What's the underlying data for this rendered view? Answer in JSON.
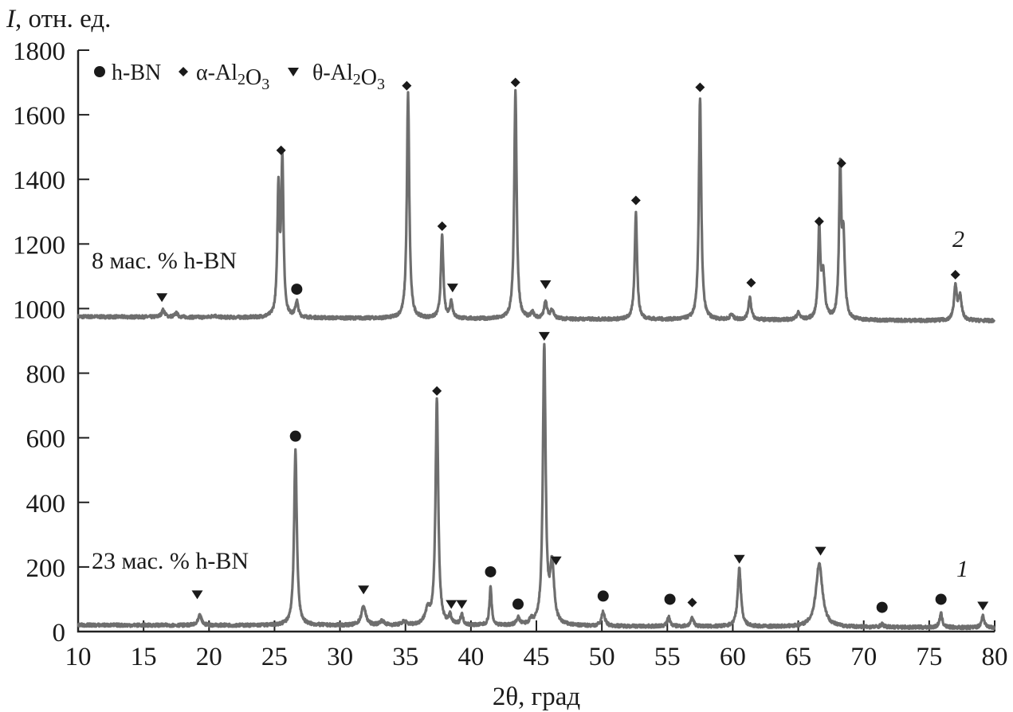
{
  "chart_data": {
    "type": "line",
    "title": "",
    "xlabel": "2θ, град",
    "ylabel_italic": "I",
    "ylabel_rest": ", отн. ед.",
    "xlim": [
      10,
      80
    ],
    "ylim": [
      0,
      1800
    ],
    "xticks": [
      10,
      15,
      20,
      25,
      30,
      35,
      40,
      45,
      50,
      55,
      60,
      65,
      70,
      75,
      80
    ],
    "yticks": [
      0,
      200,
      400,
      600,
      800,
      1000,
      1200,
      1400,
      1600,
      1800
    ],
    "grid": false,
    "line_color": "#6e6e6e",
    "legend": {
      "placement": "top-left",
      "entries": [
        {
          "marker": "circle",
          "label": "h-BN"
        },
        {
          "marker": "diamond",
          "label": "α-Al2O3"
        },
        {
          "marker": "triangle-down",
          "label": "θ-Al2O3"
        }
      ]
    },
    "series": [
      {
        "curve_number": "2",
        "name": "8 мас. % h-BN",
        "baseline": [
          [
            10,
            975
          ],
          [
            40,
            968
          ],
          [
            80,
            962
          ]
        ],
        "peaks": [
          [
            16.5,
            995,
            0.3
          ],
          [
            17.5,
            985,
            0.3
          ],
          [
            20.4,
            978,
            0.4
          ],
          [
            25.3,
            1360,
            0.2
          ],
          [
            25.6,
            1450,
            0.2
          ],
          [
            26.7,
            1020,
            0.25
          ],
          [
            35.2,
            1665,
            0.22
          ],
          [
            37.8,
            1225,
            0.22
          ],
          [
            38.5,
            1020,
            0.25
          ],
          [
            43.4,
            1675,
            0.22
          ],
          [
            44.7,
            985,
            0.3
          ],
          [
            45.7,
            1022,
            0.25
          ],
          [
            46.2,
            995,
            0.3
          ],
          [
            52.6,
            1295,
            0.22
          ],
          [
            57.5,
            1650,
            0.22
          ],
          [
            59.9,
            980,
            0.3
          ],
          [
            61.3,
            1035,
            0.25
          ],
          [
            65.0,
            985,
            0.3
          ],
          [
            66.6,
            1240,
            0.2
          ],
          [
            66.9,
            1100,
            0.3
          ],
          [
            68.2,
            1415,
            0.2
          ],
          [
            68.45,
            1200,
            0.25
          ],
          [
            77.0,
            1065,
            0.25
          ],
          [
            77.35,
            1035,
            0.3
          ]
        ],
        "markers": [
          [
            "triangle-down",
            16.4,
            1035
          ],
          [
            "diamond",
            25.5,
            1490
          ],
          [
            "circle",
            26.7,
            1060
          ],
          [
            "diamond",
            35.1,
            1690
          ],
          [
            "diamond",
            37.8,
            1255
          ],
          [
            "triangle-down",
            38.6,
            1065
          ],
          [
            "diamond",
            43.4,
            1700
          ],
          [
            "triangle-down",
            45.7,
            1075
          ],
          [
            "diamond",
            52.6,
            1335
          ],
          [
            "diamond",
            57.5,
            1685
          ],
          [
            "diamond",
            61.4,
            1080
          ],
          [
            "diamond",
            66.6,
            1270
          ],
          [
            "diamond",
            68.3,
            1450
          ],
          [
            "diamond",
            77.0,
            1105
          ]
        ]
      },
      {
        "curve_number": "1",
        "name": "23 мас. % h-BN",
        "baseline": [
          [
            10,
            20
          ],
          [
            40,
            18
          ],
          [
            80,
            12
          ]
        ],
        "peaks": [
          [
            19.3,
            50,
            0.3
          ],
          [
            26.6,
            560,
            0.25
          ],
          [
            31.8,
            78,
            0.4
          ],
          [
            33.2,
            32,
            0.4
          ],
          [
            34.9,
            30,
            0.4
          ],
          [
            36.7,
            60,
            0.5
          ],
          [
            37.4,
            715,
            0.25
          ],
          [
            38.4,
            45,
            0.25
          ],
          [
            39.3,
            50,
            0.25
          ],
          [
            41.5,
            135,
            0.2
          ],
          [
            43.6,
            40,
            0.3
          ],
          [
            44.6,
            30,
            0.3
          ],
          [
            45.6,
            878,
            0.25
          ],
          [
            46.2,
            200,
            0.35
          ],
          [
            50.1,
            60,
            0.3
          ],
          [
            55.1,
            45,
            0.25
          ],
          [
            56.9,
            40,
            0.3
          ],
          [
            60.5,
            195,
            0.3
          ],
          [
            66.6,
            210,
            0.6
          ],
          [
            71.4,
            22,
            0.3
          ],
          [
            75.9,
            55,
            0.25
          ],
          [
            79.1,
            50,
            0.25
          ]
        ],
        "markers": [
          [
            "triangle-down",
            19.1,
            115
          ],
          [
            "circle",
            26.6,
            605
          ],
          [
            "triangle-down",
            31.8,
            130
          ],
          [
            "diamond",
            37.4,
            745
          ],
          [
            "triangle-down",
            38.5,
            85
          ],
          [
            "triangle-down",
            39.3,
            85
          ],
          [
            "circle",
            41.5,
            185
          ],
          [
            "circle",
            43.6,
            85
          ],
          [
            "triangle-down",
            45.6,
            915
          ],
          [
            "triangle-down",
            46.5,
            220
          ],
          [
            "circle",
            50.1,
            110
          ],
          [
            "circle",
            55.2,
            100
          ],
          [
            "diamond",
            56.9,
            90
          ],
          [
            "triangle-down",
            60.5,
            225
          ],
          [
            "triangle-down",
            66.7,
            250
          ],
          [
            "circle",
            71.4,
            75
          ],
          [
            "circle",
            75.9,
            100
          ],
          [
            "triangle-down",
            79.1,
            80
          ]
        ]
      }
    ]
  }
}
